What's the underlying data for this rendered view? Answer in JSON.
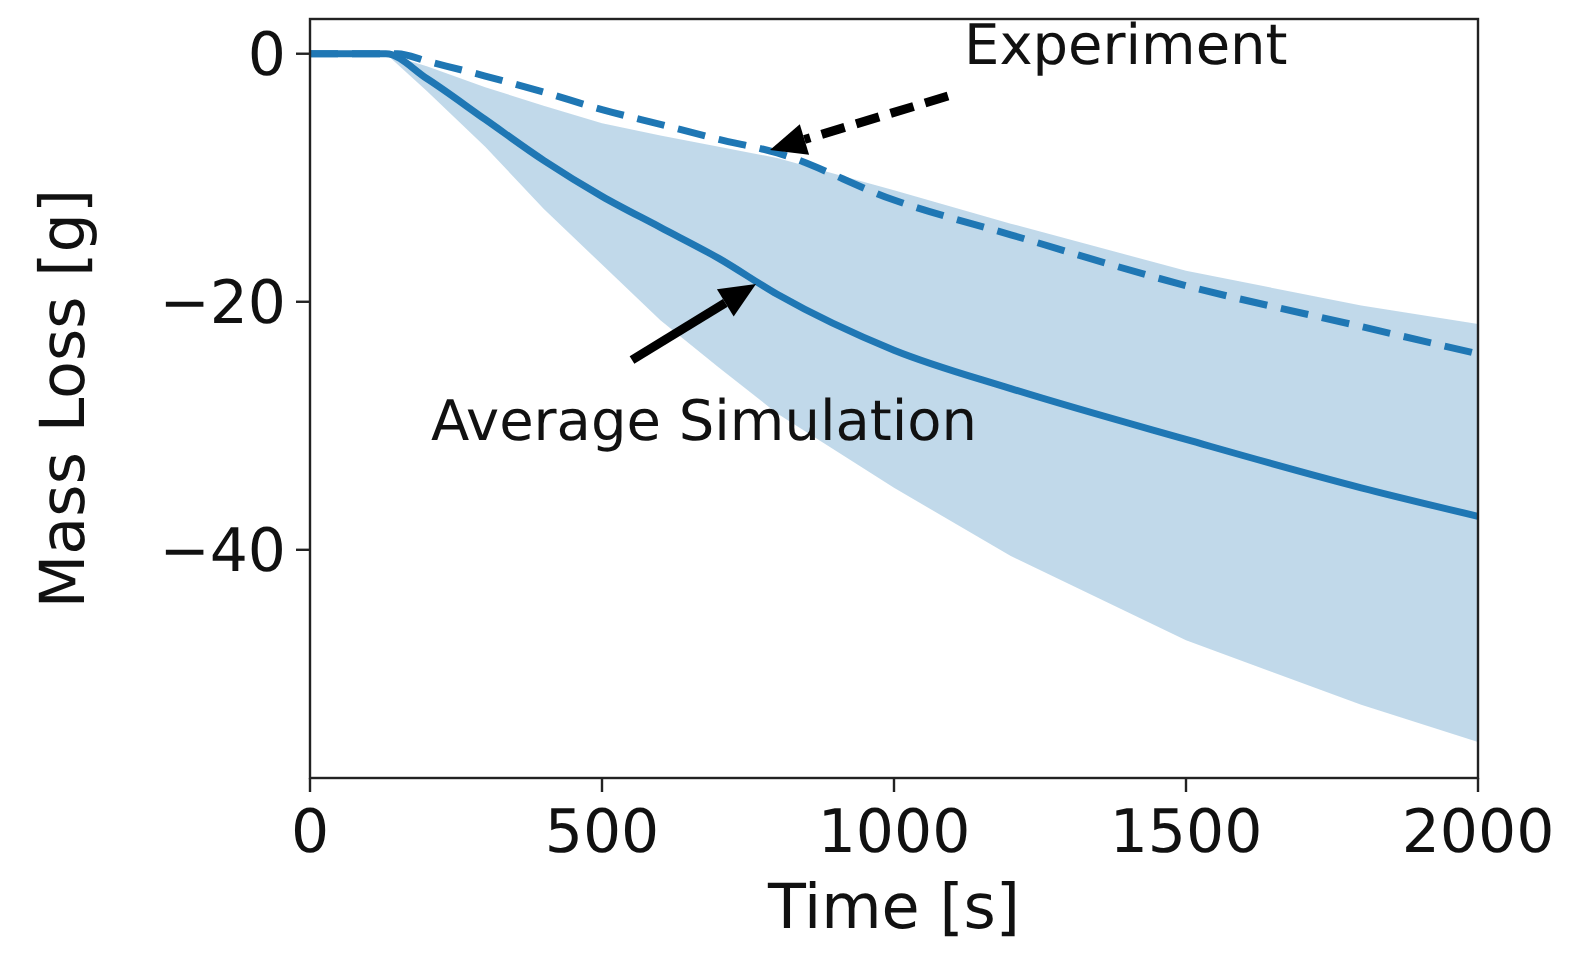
{
  "chart_data": {
    "type": "line",
    "xlabel": "Time [s]",
    "ylabel": "Mass Loss [g]",
    "xlim": [
      0,
      2000
    ],
    "xticks": [
      0,
      500,
      1000,
      1500,
      2000
    ],
    "ylim": [
      -58.4,
      2.8
    ],
    "yticks": [
      {
        "value": 0,
        "label": "0"
      },
      {
        "value": -20,
        "label": "−20"
      },
      {
        "value": -40,
        "label": "−40"
      }
    ],
    "grid": false,
    "marker": "none",
    "series": [
      {
        "color": "#1f77b4",
        "line_style": "solid",
        "x": [
          0,
          130,
          200,
          300,
          400,
          500,
          600,
          700,
          800,
          1000,
          1200,
          1500,
          1800,
          2000
        ],
        "values": [
          0,
          0,
          -2,
          -5.3,
          -8.6,
          -11.5,
          -14,
          -16.5,
          -19.4,
          -23.9,
          -27,
          -31.1,
          -35,
          -37.3
        ],
        "lower": [
          0,
          0,
          -3,
          -7.5,
          -12.5,
          -17,
          -21.5,
          -25.3,
          -29,
          -35,
          -40.5,
          -47.3,
          -52.5,
          -55.5
        ],
        "upper": [
          0,
          0,
          -1,
          -2.7,
          -4.2,
          -5.6,
          -6.6,
          -7.5,
          -8.4,
          -11,
          -13.7,
          -17.5,
          -20.3,
          -21.8
        ]
      },
      {
        "color": "#1f77b4",
        "line_style": "dashed",
        "x": [
          0,
          150,
          200,
          300,
          400,
          500,
          600,
          700,
          800,
          1000,
          1200,
          1500,
          1800,
          2000
        ],
        "values": [
          0,
          0,
          -0.6,
          -1.8,
          -3.1,
          -4.5,
          -5.7,
          -6.9,
          -8,
          -11.8,
          -14.6,
          -18.7,
          -22,
          -24.2
        ]
      }
    ],
    "annotations": [
      "Experiment",
      "Average Simulation"
    ]
  }
}
